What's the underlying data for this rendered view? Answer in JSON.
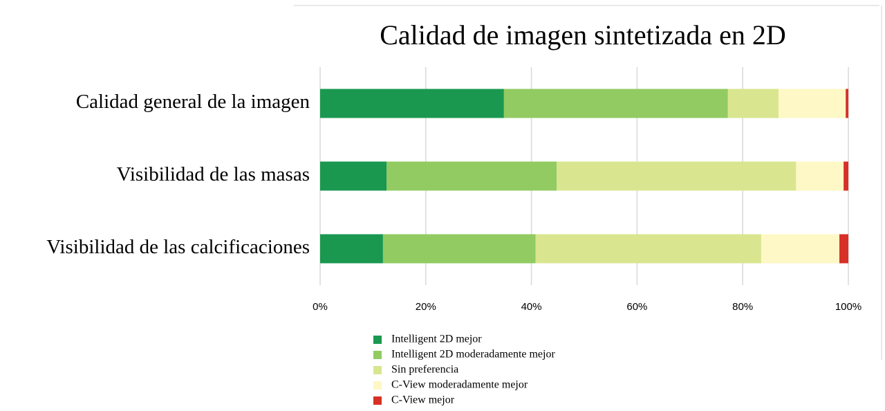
{
  "chart_data": {
    "type": "stacked_barh",
    "title": "Calidad de imagen sintetizada en 2D",
    "categories": [
      "Calidad general de la imagen",
      "Visibilidad de las masas",
      "Visibilidad de las calcificaciones"
    ],
    "series": [
      {
        "name": "Intelligent 2D mejor",
        "color": "#1a9850",
        "values": [
          34.8,
          12.6,
          11.9
        ]
      },
      {
        "name": "Intelligent 2D moderadamente mejor",
        "color": "#91cb62",
        "values": [
          42.4,
          32.2,
          28.9
        ]
      },
      {
        "name": "Sin preferencia",
        "color": "#d9e68f",
        "values": [
          9.6,
          45.3,
          42.7
        ]
      },
      {
        "name": "C-View moderadamente mejor",
        "color": "#fdf8c5",
        "values": [
          12.7,
          9.0,
          14.8
        ]
      },
      {
        "name": "C-View mejor",
        "color": "#d73027",
        "values": [
          0.5,
          0.9,
          1.7
        ]
      }
    ],
    "xlim": [
      0,
      100
    ],
    "xticks": [
      {
        "value": 0,
        "label": "0%"
      },
      {
        "value": 20,
        "label": "20%"
      },
      {
        "value": 40,
        "label": "40%"
      },
      {
        "value": 60,
        "label": "60%"
      },
      {
        "value": 80,
        "label": "80%"
      },
      {
        "value": 100,
        "label": "100%"
      }
    ],
    "grid": true,
    "legend": "bottom"
  }
}
